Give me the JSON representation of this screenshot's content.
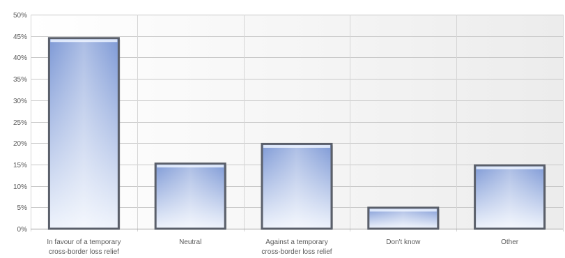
{
  "chart_data": {
    "type": "bar",
    "title": "",
    "xlabel": "",
    "ylabel": "",
    "categories": [
      [
        "In favour of a temporary",
        "cross-border loss relief"
      ],
      [
        "Neutral"
      ],
      [
        "Against a temporary",
        "cross-border loss relief"
      ],
      [
        "Don't know"
      ],
      [
        "Other"
      ]
    ],
    "values": [
      44.5,
      15.2,
      19.8,
      4.9,
      14.8
    ],
    "ylim": [
      0,
      50
    ],
    "yticks": [
      0,
      5,
      10,
      15,
      20,
      25,
      30,
      35,
      40,
      45,
      50
    ],
    "ytick_labels": [
      "0%",
      "5%",
      "10%",
      "15%",
      "20%",
      "25%",
      "30%",
      "35%",
      "40%",
      "45%",
      "50%"
    ],
    "grid": true,
    "legend": "none",
    "colors": {
      "bar_top": "#7f9ad6",
      "bar_bottom": "#eef3fc",
      "bar_edge": "#5a5f6a",
      "grid": "#c8c8c8",
      "plot_bg_left": "#ffffff",
      "plot_bg_right": "#ececec"
    }
  }
}
